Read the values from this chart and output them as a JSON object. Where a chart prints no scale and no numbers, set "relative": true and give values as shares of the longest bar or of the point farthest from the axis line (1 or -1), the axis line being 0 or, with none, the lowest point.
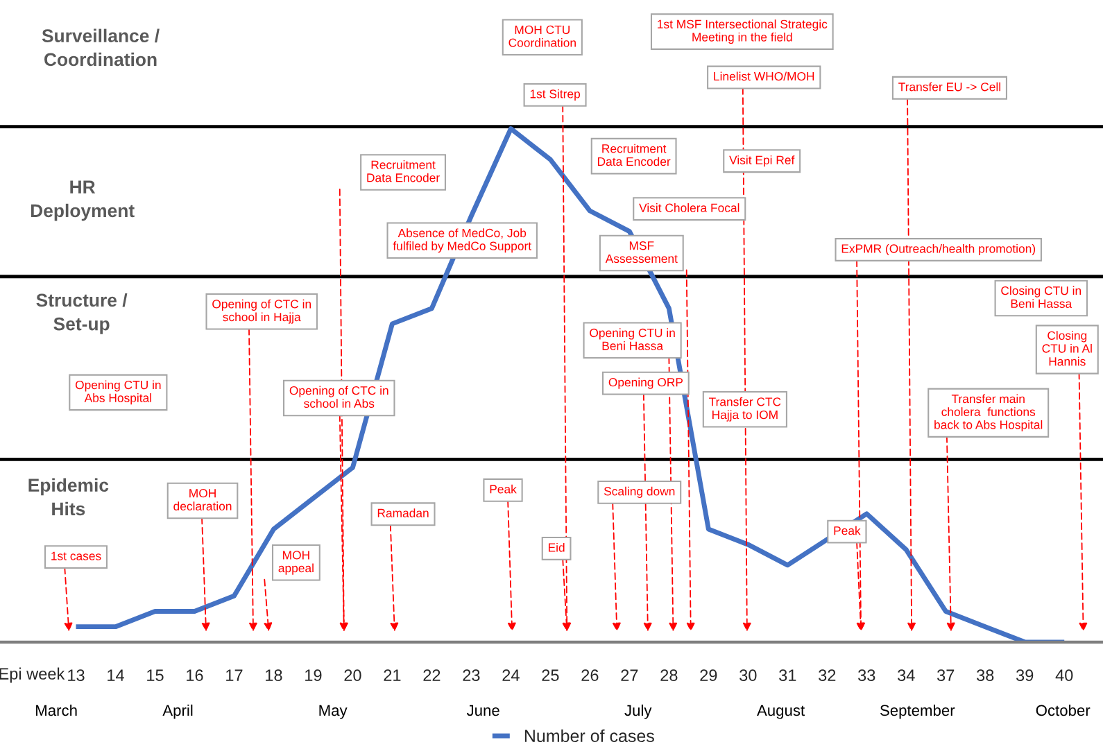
{
  "chart_data": {
    "type": "line",
    "relative": true,
    "xlabel": "Epi week",
    "categories": [
      "13",
      "14",
      "15",
      "16",
      "17",
      "18",
      "19",
      "20",
      "21",
      "22",
      "23",
      "24",
      "25",
      "26",
      "27",
      "28",
      "29",
      "30",
      "31",
      "32",
      "33",
      "34",
      "37",
      "38",
      "39",
      "40"
    ],
    "series": [
      {
        "name": "Number of cases",
        "color": "#4472c4",
        "values": [
          0.03,
          0.03,
          0.06,
          0.06,
          0.09,
          0.22,
          0.28,
          0.34,
          0.62,
          0.65,
          0.83,
          1.0,
          0.94,
          0.84,
          0.8,
          0.65,
          0.22,
          0.19,
          0.15,
          0.2,
          0.25,
          0.18,
          0.06,
          0.03,
          0,
          0
        ]
      }
    ],
    "ref_lines": [
      {
        "axis": "y",
        "value": 1.004,
        "color": "#000000"
      },
      {
        "axis": "y",
        "value": 0.712,
        "color": "#000000"
      },
      {
        "axis": "y",
        "value": 0.356,
        "color": "#000000"
      }
    ],
    "annotations": [
      "Surveillance /\nCoordination",
      "HR\nDeployment",
      "Structure /\nSet-up",
      "Epidemic\nHits",
      "MOH CTU\nCoordination",
      "1st MSF Intersectional Strategic\nMeeting in the field",
      "Linelist WHO/MOH",
      "1st Sitrep",
      "Transfer EU -> Cell",
      "Recruitment\nData Encoder",
      "Recruitment\nData Encoder",
      "Visit Epi Ref",
      "Visit Cholera Focal",
      "Absence of MedCo, Job\nfulfiled by MedCo Support",
      "MSF\nAssessement",
      "ExPMR (Outreach/health promotion)",
      "Closing CTU in\nBeni Hassa",
      "Closing\nCTU in Al\nHannis",
      "Opening of CTC in\nschool in Hajja",
      "Opening CTU in\nBeni Hassa",
      "Opening CTU in\nAbs Hospital",
      "Opening of CTC in\nschool in Abs",
      "Opening ORP",
      "Transfer CTC\nHajja to IOM",
      "Transfer main\ncholera  functions\nback to Abs Hospital",
      "MOH\ndeclaration",
      "Peak",
      "Scaling down",
      "Ramadan",
      "Peak",
      "Eid",
      "MOH\nappeal",
      "1st cases",
      "March",
      "April",
      "May",
      "June",
      "July",
      "August",
      "September",
      "October"
    ],
    "legend": "bottom"
  }
}
